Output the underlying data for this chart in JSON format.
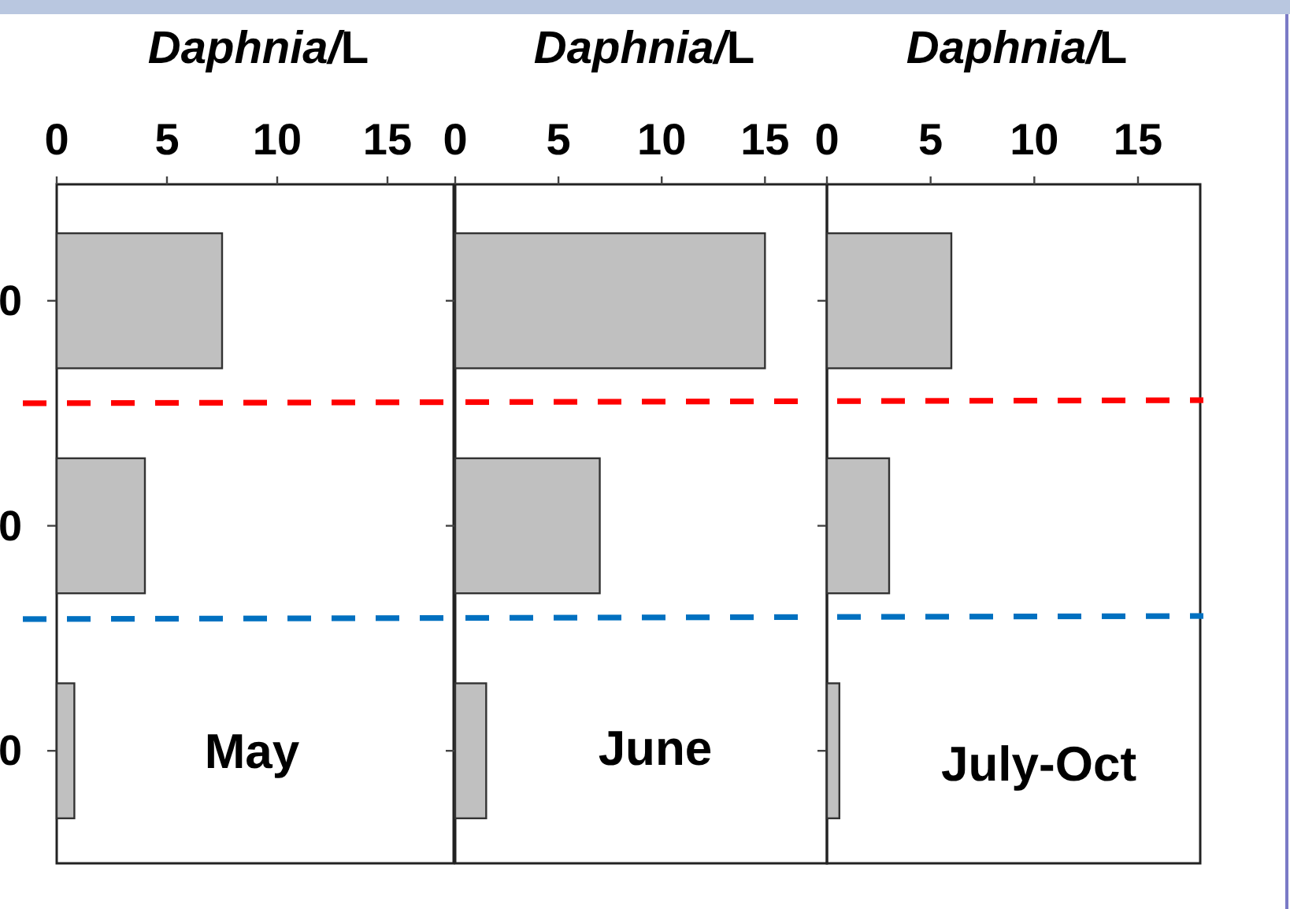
{
  "chart_data": [
    {
      "type": "bar",
      "orientation": "horizontal",
      "xlabel": "Daphnia/L",
      "categories": [
        "0",
        "0",
        "0"
      ],
      "values": [
        7.5,
        4,
        0.8
      ],
      "color": "#c0c0c0",
      "xlim": [
        0,
        18
      ],
      "xticks": [
        0,
        5,
        10,
        15
      ],
      "annotations": [
        "May"
      ]
    },
    {
      "type": "bar",
      "orientation": "horizontal",
      "xlabel": "Daphnia/L",
      "categories": [
        null,
        null,
        null
      ],
      "values": [
        15,
        7,
        1.5
      ],
      "color": "#c0c0c0",
      "xlim": [
        0,
        18
      ],
      "xticks": [
        0,
        5,
        10,
        15
      ],
      "annotations": [
        "June"
      ]
    },
    {
      "type": "bar",
      "orientation": "horizontal",
      "xlabel": "Daphnia/L",
      "categories": [
        null,
        null,
        null
      ],
      "values": [
        6,
        3,
        0.6
      ],
      "color": "#c0c0c0",
      "xlim": [
        0,
        18
      ],
      "xticks": [
        0,
        5,
        10,
        15
      ],
      "annotations": [
        "July-Oct"
      ]
    }
  ]
}
